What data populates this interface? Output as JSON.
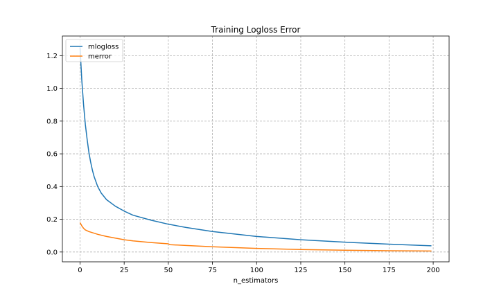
{
  "chart_data": {
    "type": "line",
    "title": "Training Logloss Error",
    "xlabel": "n_estimators",
    "ylabel": "",
    "xlim": [
      -10,
      209
    ],
    "ylim": [
      -0.06,
      1.32
    ],
    "xticks": [
      0,
      25,
      50,
      75,
      100,
      125,
      150,
      175,
      200
    ],
    "yticks": [
      0.0,
      0.2,
      0.4,
      0.6,
      0.8,
      1.0,
      1.2
    ],
    "grid": true,
    "legend_position": "top-left",
    "series": [
      {
        "name": "mlogloss",
        "color": "#1f77b4",
        "x": [
          0,
          1,
          2,
          3,
          4,
          5,
          6,
          7,
          8,
          10,
          12,
          15,
          20,
          25,
          30,
          40,
          50,
          60,
          75,
          100,
          125,
          150,
          175,
          199
        ],
        "y": [
          1.25,
          1.05,
          0.9,
          0.78,
          0.69,
          0.61,
          0.55,
          0.5,
          0.46,
          0.4,
          0.36,
          0.32,
          0.28,
          0.25,
          0.225,
          0.195,
          0.17,
          0.15,
          0.125,
          0.095,
          0.075,
          0.06,
          0.048,
          0.038
        ]
      },
      {
        "name": "merror",
        "color": "#ff7f0e",
        "x": [
          0,
          1,
          2,
          3,
          5,
          8,
          10,
          15,
          20,
          25,
          30,
          40,
          50,
          51,
          60,
          75,
          100,
          125,
          150,
          175,
          199
        ],
        "y": [
          0.18,
          0.16,
          0.145,
          0.135,
          0.125,
          0.115,
          0.108,
          0.095,
          0.085,
          0.075,
          0.068,
          0.058,
          0.05,
          0.045,
          0.04,
          0.032,
          0.022,
          0.015,
          0.011,
          0.008,
          0.006
        ]
      }
    ]
  }
}
